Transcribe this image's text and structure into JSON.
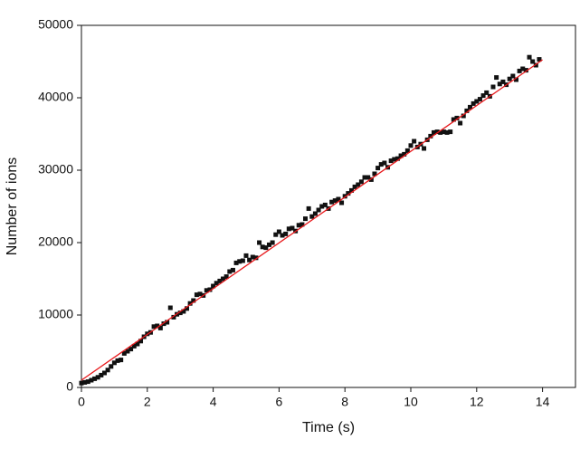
{
  "chart_data": {
    "type": "scatter",
    "x_label": "Time (s)",
    "y_label": "Number of ions",
    "xlim": [
      0,
      15
    ],
    "xticks": [
      0,
      2,
      4,
      6,
      8,
      10,
      12,
      14
    ],
    "ylim": [
      0,
      50000
    ],
    "yticks": [
      0,
      10000,
      20000,
      30000,
      40000,
      50000
    ],
    "grid": false,
    "series": [
      {
        "mode": "markers",
        "marker": "square",
        "color": "#111111",
        "x": [
          0,
          0.1,
          0.2,
          0.3,
          0.4,
          0.5,
          0.6,
          0.7,
          0.8,
          0.9,
          1,
          1.1,
          1.2,
          1.3,
          1.4,
          1.5,
          1.6,
          1.7,
          1.8,
          1.9,
          2,
          2.1,
          2.2,
          2.3,
          2.4,
          2.5,
          2.6,
          2.7,
          2.8,
          2.9,
          3,
          3.1,
          3.2,
          3.3,
          3.4,
          3.5,
          3.6,
          3.7,
          3.8,
          3.9,
          4,
          4.1,
          4.2,
          4.3,
          4.4,
          4.5,
          4.6,
          4.7,
          4.8,
          4.9,
          5,
          5.1,
          5.2,
          5.3,
          5.4,
          5.5,
          5.6,
          5.7,
          5.8,
          5.9,
          6,
          6.1,
          6.2,
          6.3,
          6.4,
          6.5,
          6.6,
          6.7,
          6.8,
          6.9,
          7,
          7.1,
          7.2,
          7.3,
          7.4,
          7.5,
          7.6,
          7.7,
          7.8,
          7.9,
          8,
          8.1,
          8.2,
          8.3,
          8.4,
          8.5,
          8.6,
          8.7,
          8.8,
          8.9,
          9,
          9.1,
          9.2,
          9.3,
          9.4,
          9.5,
          9.6,
          9.7,
          9.8,
          9.9,
          10,
          10.1,
          10.2,
          10.3,
          10.4,
          10.5,
          10.6,
          10.7,
          10.8,
          10.9,
          11,
          11.1,
          11.2,
          11.3,
          11.4,
          11.5,
          11.6,
          11.7,
          11.8,
          11.9,
          12,
          12.1,
          12.2,
          12.3,
          12.4,
          12.5,
          12.6,
          12.7,
          12.8,
          12.9,
          13,
          13.1,
          13.2,
          13.3,
          13.4,
          13.5,
          13.6,
          13.7,
          13.8,
          13.9
        ],
        "values": [
          600,
          700,
          800,
          1000,
          1200,
          1400,
          1700,
          2000,
          2400,
          2900,
          3400,
          3700,
          3800,
          4700,
          5000,
          5300,
          5700,
          6000,
          6400,
          7000,
          7400,
          7600,
          8400,
          8500,
          8200,
          8800,
          9000,
          11000,
          9700,
          10100,
          10300,
          10500,
          10900,
          11600,
          12000,
          12800,
          12900,
          12700,
          13400,
          13500,
          14000,
          14400,
          14700,
          15000,
          15300,
          16000,
          16200,
          17200,
          17400,
          17500,
          18200,
          17600,
          18000,
          17900,
          20000,
          19400,
          19300,
          19700,
          20000,
          21100,
          21500,
          21000,
          21200,
          21900,
          22000,
          21600,
          22400,
          22500,
          23300,
          24700,
          23600,
          24000,
          24500,
          25000,
          25200,
          24700,
          25600,
          25800,
          26000,
          25500,
          26400,
          26800,
          27200,
          27700,
          28000,
          28400,
          29000,
          29000,
          28700,
          29500,
          30300,
          30800,
          31000,
          30400,
          31300,
          31500,
          31600,
          32000,
          32200,
          32700,
          33400,
          34000,
          33200,
          33600,
          33000,
          34200,
          34700,
          35200,
          35300,
          35200,
          35300,
          35200,
          35300,
          37000,
          37200,
          36500,
          37500,
          38200,
          38700,
          39200,
          39500,
          39800,
          40300,
          40700,
          40200,
          41500,
          42800,
          41900,
          42200,
          41800,
          42600,
          43000,
          42500,
          43700,
          44000,
          43800,
          45600,
          45000,
          44500,
          45300
        ]
      },
      {
        "mode": "line",
        "color": "#e8191c",
        "x": [
          0,
          14
        ],
        "values": [
          1000,
          45250
        ]
      }
    ]
  }
}
